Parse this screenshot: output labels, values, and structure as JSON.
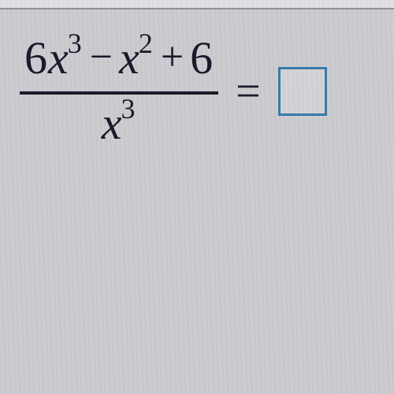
{
  "equation": {
    "numerator": {
      "coef1": "6",
      "var1": "x",
      "exp1": "3",
      "op1": "−",
      "var2": "x",
      "exp2": "2",
      "op2": "+",
      "const": "6"
    },
    "denominator": {
      "var": "x",
      "exp": "3"
    },
    "equals": "="
  },
  "styling": {
    "text_color": "#1a1a2a",
    "background_stripe_a": "#c8c8cc",
    "background_stripe_b": "#d0d0d4",
    "answer_box_border": "#3a7aaa",
    "base_fontsize": 58,
    "sup_fontsize": 36,
    "answer_box_size": 62,
    "top_bar_color": "#e0e0e4",
    "top_bar_border": "#909098"
  }
}
